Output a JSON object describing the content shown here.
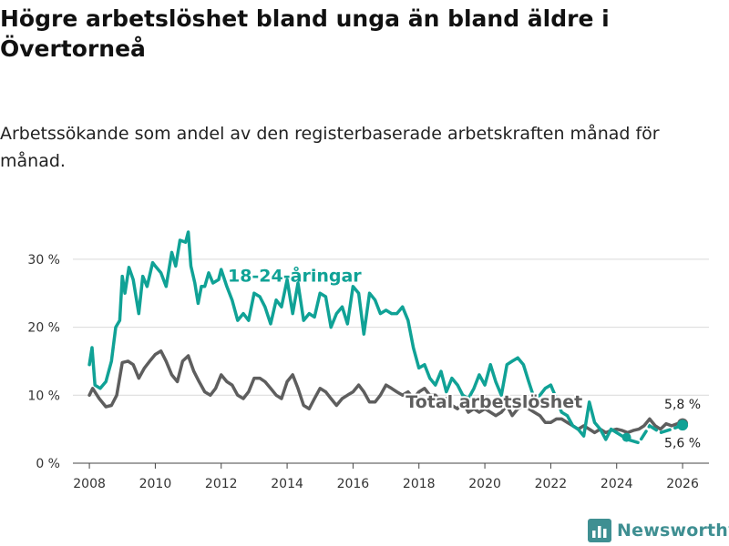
{
  "header": {
    "title": "Högre arbetslöshet bland unga än bland äldre i Övertorneå",
    "subtitle": "Arbetssökande som andel av den registerbaserade arbetskraften månad för månad."
  },
  "brand": {
    "name": "Newsworthy",
    "color": "#3f8f92"
  },
  "chart_data": {
    "type": "line",
    "title": "Högre arbetslöshet bland unga än bland äldre i Övertorneå",
    "xlabel": "",
    "ylabel": "",
    "xlim": [
      2007.5,
      2026.8
    ],
    "ylim": [
      0,
      34
    ],
    "x_ticks": [
      2008,
      2010,
      2012,
      2014,
      2016,
      2018,
      2020,
      2022,
      2024,
      2026
    ],
    "x_tick_labels": [
      "2008",
      "2010",
      "2012",
      "2014",
      "2016",
      "2018",
      "2020",
      "2022",
      "2024",
      "2026"
    ],
    "y_ticks": [
      0,
      10,
      20,
      30
    ],
    "y_tick_labels": [
      "0 %",
      "10 %",
      "20 %",
      "30 %"
    ],
    "grid": true,
    "series": [
      {
        "name": "18-24-åringar",
        "color": "#10a296",
        "x": [
          2008.0,
          2008.08,
          2008.17,
          2008.33,
          2008.5,
          2008.67,
          2008.8,
          2008.92,
          2009.0,
          2009.08,
          2009.2,
          2009.33,
          2009.5,
          2009.62,
          2009.75,
          2009.92,
          2010.0,
          2010.17,
          2010.33,
          2010.5,
          2010.62,
          2010.75,
          2010.92,
          2011.0,
          2011.08,
          2011.2,
          2011.3,
          2011.4,
          2011.5,
          2011.62,
          2011.75,
          2011.92,
          2012.0,
          2012.17,
          2012.33,
          2012.5,
          2012.67,
          2012.83,
          2013.0,
          2013.17,
          2013.33,
          2013.5,
          2013.67,
          2013.83,
          2014.0,
          2014.17,
          2014.33,
          2014.5,
          2014.67,
          2014.83,
          2015.0,
          2015.17,
          2015.33,
          2015.5,
          2015.67,
          2015.83,
          2016.0,
          2016.17,
          2016.33,
          2016.5,
          2016.67,
          2016.83,
          2017.0,
          2017.17,
          2017.33,
          2017.5,
          2017.67,
          2017.83,
          2018.0,
          2018.17,
          2018.33,
          2018.5,
          2018.67,
          2018.83,
          2019.0,
          2019.17,
          2019.33,
          2019.5,
          2019.67,
          2019.83,
          2020.0,
          2020.17,
          2020.33,
          2020.5,
          2020.67,
          2020.83,
          2021.0,
          2021.17,
          2021.33,
          2021.5,
          2021.67,
          2021.83,
          2022.0,
          2022.17,
          2022.33,
          2022.5,
          2022.67,
          2022.83,
          2023.0,
          2023.17,
          2023.33,
          2023.5,
          2023.67,
          2023.83,
          2024.0
        ],
        "values": [
          14.5,
          17.0,
          11.5,
          11.0,
          12.0,
          15.0,
          20.0,
          21.0,
          27.5,
          25.0,
          28.8,
          27.0,
          22.0,
          27.5,
          26.0,
          29.5,
          29.0,
          28.0,
          26.0,
          31.0,
          29.0,
          32.8,
          32.5,
          34.0,
          29.0,
          26.5,
          23.5,
          26.0,
          26.0,
          28.0,
          26.5,
          27.0,
          28.5,
          26.0,
          24.0,
          21.0,
          22.0,
          21.0,
          25.0,
          24.5,
          23.0,
          20.5,
          24.0,
          23.0,
          27.0,
          22.0,
          26.5,
          21.0,
          22.0,
          21.5,
          25.0,
          24.5,
          20.0,
          22.0,
          23.0,
          20.5,
          26.0,
          25.0,
          19.0,
          25.0,
          24.0,
          22.0,
          22.5,
          22.0,
          22.0,
          23.0,
          21.0,
          17.0,
          14.0,
          14.5,
          12.5,
          11.5,
          13.5,
          10.5,
          12.5,
          11.5,
          10.0,
          9.5,
          11.0,
          13.0,
          11.5,
          14.5,
          12.0,
          10.0,
          14.5,
          15.0,
          15.5,
          14.5,
          12.0,
          9.5,
          10.0,
          11.0,
          11.5,
          9.5,
          7.5,
          7.0,
          5.5,
          5.0,
          4.0,
          9.0,
          6.0,
          5.0,
          3.5,
          5.0,
          4.5
        ],
        "dashed_tail": {
          "x": [
            2024.0,
            2024.33,
            2024.67,
            2025.0,
            2025.33,
            2025.67,
            2026.0
          ],
          "values": [
            4.5,
            3.5,
            3.0,
            5.5,
            4.5,
            5.0,
            5.6
          ]
        }
      },
      {
        "name": "Total arbetslöshet",
        "color": "#5e5e5e",
        "x": [
          2008.0,
          2008.1,
          2008.3,
          2008.5,
          2008.67,
          2008.83,
          2009.0,
          2009.17,
          2009.33,
          2009.5,
          2009.67,
          2009.83,
          2010.0,
          2010.17,
          2010.33,
          2010.5,
          2010.67,
          2010.83,
          2011.0,
          2011.17,
          2011.33,
          2011.5,
          2011.67,
          2011.83,
          2012.0,
          2012.17,
          2012.33,
          2012.5,
          2012.67,
          2012.83,
          2013.0,
          2013.17,
          2013.33,
          2013.5,
          2013.67,
          2013.83,
          2014.0,
          2014.17,
          2014.33,
          2014.5,
          2014.67,
          2014.83,
          2015.0,
          2015.17,
          2015.33,
          2015.5,
          2015.67,
          2015.83,
          2016.0,
          2016.17,
          2016.33,
          2016.5,
          2016.67,
          2016.83,
          2017.0,
          2017.17,
          2017.33,
          2017.5,
          2017.67,
          2017.83,
          2018.0,
          2018.17,
          2018.33,
          2018.5,
          2018.67,
          2018.83,
          2019.0,
          2019.17,
          2019.33,
          2019.5,
          2019.67,
          2019.83,
          2020.0,
          2020.17,
          2020.33,
          2020.5,
          2020.67,
          2020.83,
          2021.0,
          2021.17,
          2021.33,
          2021.5,
          2021.67,
          2021.83,
          2022.0,
          2022.17,
          2022.33,
          2022.5,
          2022.67,
          2022.83,
          2023.0,
          2023.17,
          2023.33,
          2023.5,
          2023.67,
          2023.83,
          2024.0,
          2024.17,
          2024.33,
          2024.5,
          2024.67,
          2024.83,
          2025.0,
          2025.17,
          2025.33,
          2025.5,
          2025.67,
          2025.83,
          2026.0
        ],
        "values": [
          10.0,
          11.0,
          9.5,
          8.3,
          8.5,
          10.0,
          14.8,
          15.0,
          14.5,
          12.5,
          14.0,
          15.0,
          16.0,
          16.5,
          15.0,
          13.0,
          12.0,
          15.0,
          15.8,
          13.5,
          12.0,
          10.5,
          10.0,
          11.0,
          13.0,
          12.0,
          11.5,
          10.0,
          9.5,
          10.5,
          12.5,
          12.5,
          12.0,
          11.0,
          10.0,
          9.5,
          12.0,
          13.0,
          11.0,
          8.5,
          8.0,
          9.5,
          11.0,
          10.5,
          9.5,
          8.5,
          9.5,
          10.0,
          10.5,
          11.5,
          10.5,
          9.0,
          9.0,
          10.0,
          11.5,
          11.0,
          10.5,
          10.0,
          10.5,
          9.5,
          10.5,
          11.0,
          10.0,
          10.0,
          9.0,
          9.5,
          8.5,
          8.0,
          9.0,
          7.5,
          8.0,
          7.5,
          8.0,
          7.5,
          7.0,
          7.5,
          8.5,
          7.0,
          8.0,
          8.5,
          8.0,
          7.5,
          7.0,
          6.0,
          6.0,
          6.5,
          6.5,
          6.0,
          5.5,
          5.0,
          5.5,
          5.0,
          4.5,
          5.0,
          4.5,
          4.8,
          5.0,
          4.8,
          4.5,
          4.8,
          5.0,
          5.5,
          6.5,
          5.5,
          5.0,
          5.8,
          5.5,
          5.8,
          5.8
        ]
      }
    ],
    "annotations": [
      {
        "text": "18-24-åringar",
        "series": "18-24-åringar",
        "x": 2012.2,
        "y": 27.5
      },
      {
        "text": "Total arbetslöshet",
        "series": "Total arbetslöshet",
        "x": 2017.6,
        "y": 9.0
      },
      {
        "text": "5,8 %",
        "x": 2026.0,
        "y": 8.7
      },
      {
        "text": "5,6 %",
        "x": 2026.0,
        "y": 3.0
      }
    ],
    "endpoints": [
      {
        "series": "Total arbetslöshet",
        "x": 2026.0,
        "y": 5.8
      },
      {
        "series": "18-24-åringar",
        "x": 2026.0,
        "y": 5.6
      },
      {
        "series": "18-24-åringar",
        "x": 2024.3,
        "y": 3.8
      }
    ]
  }
}
